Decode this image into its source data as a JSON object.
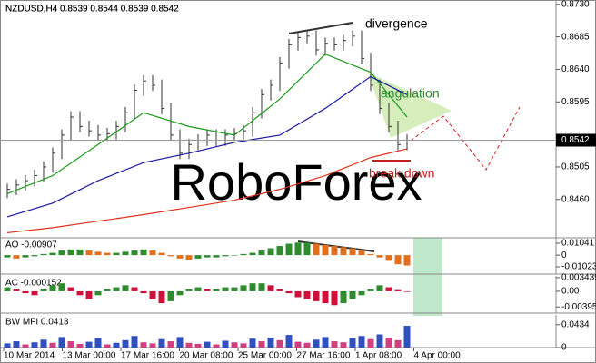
{
  "chart_data": [
    {
      "type": "ohlc",
      "title": "NZDUSD,H4  0.8539 0.8544 0.8539 0.8542",
      "watermark": "RoboForex",
      "annotations": {
        "divergence": "divergence",
        "angulation": "angulation",
        "break_down": "break down"
      },
      "color": "#333333",
      "high": [
        0.8482,
        0.8488,
        0.8494,
        0.8501,
        0.8513,
        0.8532,
        0.8557,
        0.8582,
        0.8582,
        0.8569,
        0.8563,
        0.8559,
        0.8569,
        0.8588,
        0.8619,
        0.8632,
        0.8632,
        0.8626,
        0.8594,
        0.8557,
        0.8544,
        0.855,
        0.8557,
        0.8557,
        0.8557,
        0.8559,
        0.8563,
        0.8588,
        0.8613,
        0.8626,
        0.8657,
        0.8682,
        0.8692,
        0.8694,
        0.8694,
        0.8684,
        0.8684,
        0.8688,
        0.8694,
        0.8694,
        0.8663,
        0.8626,
        0.8594,
        0.8569,
        0.855
      ],
      "low": [
        0.8462,
        0.8466,
        0.8472,
        0.8478,
        0.8485,
        0.8497,
        0.8516,
        0.8541,
        0.8553,
        0.8547,
        0.8541,
        0.8541,
        0.8543,
        0.8553,
        0.8572,
        0.8603,
        0.861,
        0.8578,
        0.8541,
        0.8516,
        0.8516,
        0.8528,
        0.8534,
        0.8534,
        0.8534,
        0.8541,
        0.8543,
        0.8547,
        0.8572,
        0.8597,
        0.861,
        0.8641,
        0.8666,
        0.8676,
        0.8659,
        0.8659,
        0.8666,
        0.8666,
        0.8672,
        0.8647,
        0.861,
        0.8578,
        0.8553,
        0.8528,
        0.8528
      ],
      "close": [
        0.8474,
        0.848,
        0.8486,
        0.8493,
        0.8505,
        0.8524,
        0.8549,
        0.8574,
        0.8561,
        0.8555,
        0.8549,
        0.8551,
        0.8561,
        0.858,
        0.8611,
        0.8624,
        0.8618,
        0.8586,
        0.8549,
        0.8524,
        0.8536,
        0.8542,
        0.8549,
        0.8542,
        0.8549,
        0.8551,
        0.8555,
        0.858,
        0.8605,
        0.8618,
        0.8649,
        0.8674,
        0.8684,
        0.8686,
        0.8667,
        0.8676,
        0.8674,
        0.868,
        0.8686,
        0.8655,
        0.8618,
        0.8586,
        0.8561,
        0.8536,
        0.8542
      ],
      "lines": [
        {
          "color": "#1a9a1a",
          "x": [
            0,
            5,
            10,
            15,
            20,
            25,
            30,
            35,
            40,
            44
          ],
          "values": [
            0.8468,
            0.8493,
            0.8536,
            0.858,
            0.8561,
            0.8549,
            0.8599,
            0.8661,
            0.8636,
            0.8574
          ]
        },
        {
          "color": "#1a1aa0",
          "x": [
            0,
            5,
            10,
            15,
            20,
            25,
            30,
            35,
            40,
            44
          ],
          "values": [
            0.8436,
            0.8455,
            0.8486,
            0.8511,
            0.8524,
            0.8539,
            0.8549,
            0.8586,
            0.863,
            0.8605
          ]
        },
        {
          "color": "#e03020",
          "x": [
            0,
            5,
            10,
            15,
            20,
            25,
            30,
            35,
            40,
            44
          ],
          "values": [
            0.8414,
            0.8421,
            0.843,
            0.8439,
            0.8449,
            0.8459,
            0.8474,
            0.8493,
            0.8518,
            0.853
          ]
        }
      ],
      "current_price": 0.8542,
      "ylim": [
        0.8407,
        0.8736
      ],
      "yticks": [
        {
          "value": 0.873,
          "label": "0.8730"
        },
        0.8685,
        {
          "value": 0.864,
          "label": "0.8640"
        },
        0.8595,
        0.8505,
        {
          "value": 0.846,
          "label": "0.8460"
        }
      ]
    },
    {
      "type": "bar",
      "title": "AO -0.00907",
      "up_color": "#2e8b2e",
      "down_color": "#e0701e",
      "values": [
        -0.002,
        -0.003,
        -0.002,
        -0.001,
        0.001,
        0.002,
        0.004,
        0.005,
        0.005,
        0.004,
        0.003,
        0.002,
        0.002,
        0.003,
        0.004,
        0.005,
        0.004,
        0.002,
        -0.001,
        -0.003,
        -0.004,
        -0.003,
        -0.002,
        -0.002,
        -0.001,
        0,
        0.001,
        0.002,
        0.004,
        0.006,
        0.008,
        0.01,
        0.011,
        0.011,
        0.01,
        0.009,
        0.008,
        0.007,
        0.006,
        0.004,
        0.001,
        -0.002,
        -0.005,
        -0.008,
        -0.00907
      ],
      "ylim": [
        -0.0166,
        0.0152
      ],
      "yticks": [
        0.01041,
        0,
        -0.01023
      ]
    },
    {
      "type": "bar",
      "title": "AC -0.000152",
      "up_color": "#2e8b2e",
      "down_color": "#d0103a",
      "values": [
        0.001,
        0.0005,
        -0.0005,
        -0.001,
        0.0005,
        0.0015,
        0.002,
        0.001,
        -0.001,
        -0.002,
        -0.001,
        0.0005,
        0.001,
        0.0015,
        0.001,
        -0.0005,
        -0.002,
        -0.003,
        -0.0025,
        -0.001,
        0.0005,
        0.001,
        0.0005,
        0.0005,
        0.001,
        0.001,
        0.0015,
        0.002,
        0.002,
        0.0015,
        0.0005,
        -0.0005,
        -0.0015,
        -0.002,
        -0.0025,
        -0.003,
        -0.0035,
        -0.003,
        -0.002,
        -0.001,
        0.0005,
        0.0015,
        0.001,
        0.0003,
        -0.000152
      ],
      "ylim": [
        -0.0055,
        0.00387
      ],
      "yticks": [
        0.003439,
        {
          "value": 0,
          "label": "0.00"
        },
        -0.00395
      ]
    },
    {
      "type": "bar",
      "title": "BW MFI 0.0413",
      "up_color": "#3050c0",
      "down_color": "#d04080",
      "values": [
        0.008,
        0.012,
        0.006,
        0.01,
        0.015,
        0.009,
        0.02,
        0.012,
        0.007,
        0.011,
        0.018,
        0.006,
        0.009,
        0.014,
        0.022,
        0.01,
        0.008,
        0.016,
        0.012,
        0.02,
        0.009,
        0.007,
        0.011,
        0.006,
        0.013,
        0.01,
        0.008,
        0.017,
        0.012,
        0.019,
        0.014,
        0.024,
        0.011,
        0.009,
        0.015,
        0.02,
        0.012,
        0.01,
        0.018,
        0.022,
        0.016,
        0.025,
        0.019,
        0.014,
        0.0413
      ],
      "ylim": [
        0,
        0.062
      ],
      "yticks": [
        0.0434,
        0
      ],
      "x_labels": [
        "10 Mar 2014",
        "13 Mar 00:00",
        "17 Mar 16:00",
        "20 Mar 08:00",
        "25 Mar 00:00",
        "27 Mar 16:00",
        "1 Apr 08:00",
        "4 Apr 00:00"
      ]
    }
  ]
}
